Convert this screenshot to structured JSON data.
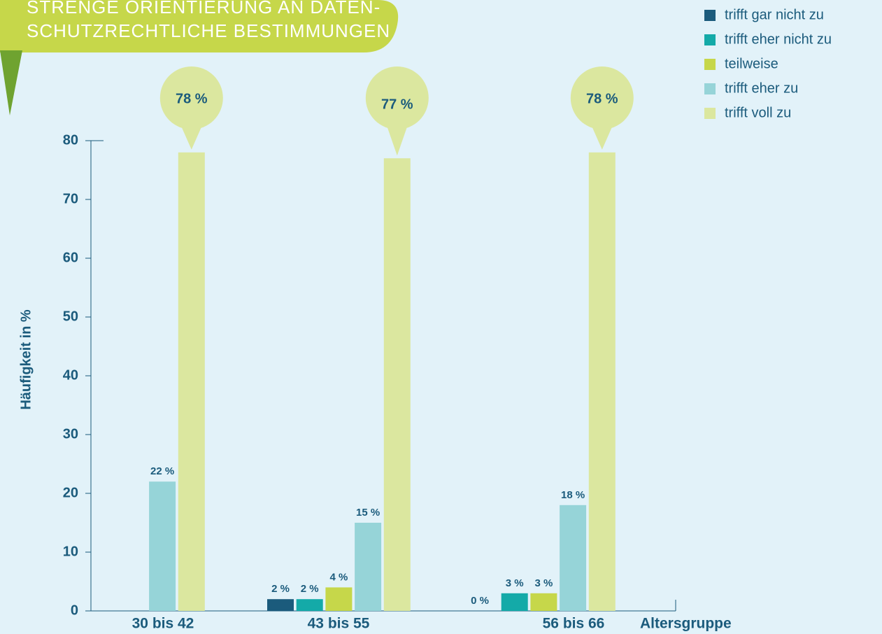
{
  "chart_data": {
    "type": "bar",
    "title": [
      "STRENGE ORIENTIERUNG AN DATEN-",
      "SCHUTZRECHTLICHE BESTIMMUNGEN"
    ],
    "y_label": "Häufigkeit in %",
    "x_label": "Altersgruppe",
    "categories": [
      "30 bis 42",
      "43 bis 55",
      "56 bis 66"
    ],
    "ylim": [
      0,
      80
    ],
    "yticks": [
      0,
      10,
      20,
      30,
      40,
      50,
      60,
      70,
      80
    ],
    "legend": "top-right",
    "series": [
      {
        "name": "trifft gar nicht zu",
        "color": "#1b5b7c",
        "values": [
          null,
          2,
          0
        ],
        "value_labels": [
          null,
          "2 %",
          "0 %"
        ]
      },
      {
        "name": "trifft eher nicht zu",
        "color": "#14aaa8",
        "values": [
          null,
          2,
          3
        ],
        "value_labels": [
          null,
          "2 %",
          "3 %"
        ]
      },
      {
        "name": "teilweise",
        "color": "#c6d74a",
        "values": [
          null,
          4,
          3
        ],
        "value_labels": [
          null,
          "4 %",
          "3 %"
        ]
      },
      {
        "name": "trifft eher zu",
        "color": "#96d4d8",
        "values": [
          22,
          15,
          18
        ],
        "value_labels": [
          "22 %",
          "15 %",
          "18 %"
        ]
      },
      {
        "name": "trifft voll zu",
        "color": "#dbe79f",
        "values": [
          78,
          77,
          78
        ],
        "value_labels": [
          "78 %",
          "77 %",
          "78 %"
        ],
        "label_style": "bubble"
      }
    ]
  }
}
